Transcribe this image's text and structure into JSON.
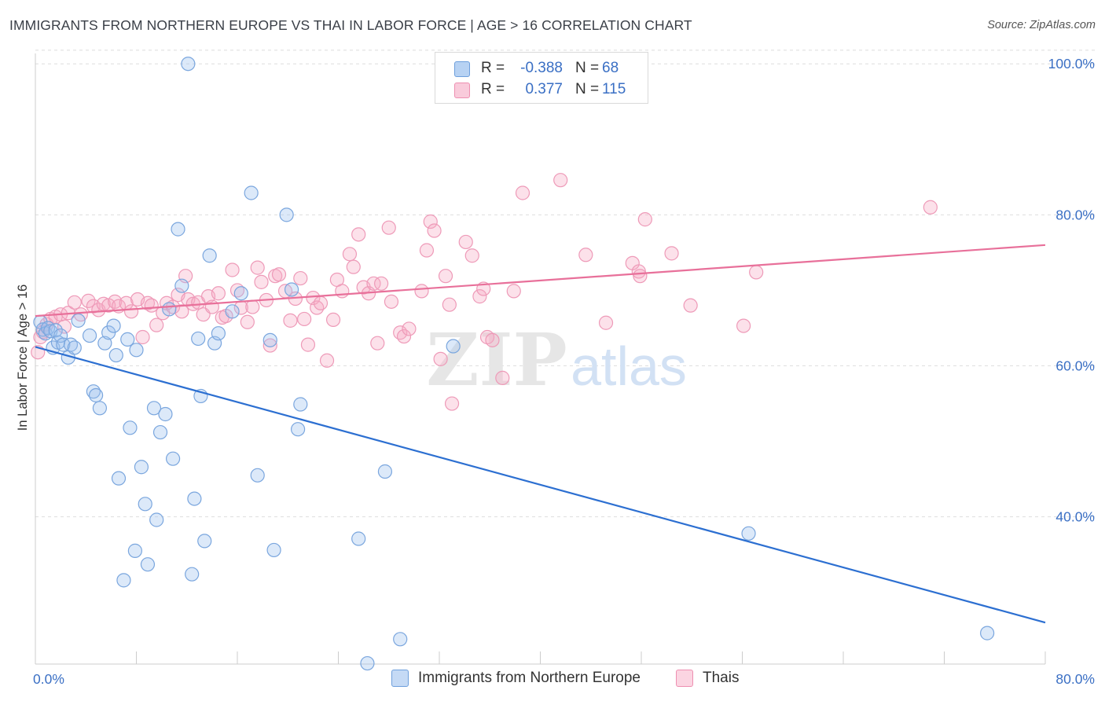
{
  "title": "IMMIGRANTS FROM NORTHERN EUROPE VS THAI IN LABOR FORCE | AGE > 16 CORRELATION CHART",
  "source": "Source: ZipAtlas.com",
  "watermark": {
    "zip": "ZIP",
    "atlas": "atlas"
  },
  "legend_top": {
    "rows": [
      {
        "r_label": "R =",
        "r_value": "-0.388",
        "n_label": "N =",
        "n_value": "68",
        "color": "#a9c8f0",
        "border": "#6e9fdc"
      },
      {
        "r_label": "R =",
        "r_value": "0.377",
        "n_label": "N =",
        "n_value": "115",
        "color": "#f7bfd2",
        "border": "#ee8fb1"
      }
    ]
  },
  "legend_bottom": [
    {
      "label": "Immigrants from Northern Europe",
      "color": "#c5daf5",
      "border": "#6e9fdc"
    },
    {
      "label": "Thais",
      "color": "#fbd5e2",
      "border": "#ee8fb1"
    }
  ],
  "chart_data": {
    "type": "scatter",
    "title": "IMMIGRANTS FROM NORTHERN EUROPE VS THAI IN LABOR FORCE | AGE > 16 CORRELATION CHART",
    "xlabel": "",
    "ylabel": "In Labor Force | Age > 16",
    "xlim": [
      0,
      80
    ],
    "ylim": [
      20.5,
      102
    ],
    "x_tick_labels": [
      "0.0%",
      "80.0%"
    ],
    "y_ticks": [
      40,
      60,
      80,
      100
    ],
    "y_tick_labels": [
      "40.0%",
      "60.0%",
      "80.0%",
      "100.0%"
    ],
    "grid": true,
    "legend_position": "top-center",
    "colors": {
      "blue_fill": "rgba(156,192,238,0.35)",
      "blue_stroke": "#7aa6de",
      "blue_line": "#2c6fd1",
      "pink_fill": "rgba(245,170,196,0.35)",
      "pink_stroke": "#ee9ab8",
      "pink_line": "#e8709a",
      "axis_label": "#3a6fc4",
      "grid": "#dedede"
    },
    "series": [
      {
        "name": "Immigrants from Northern Europe",
        "color": "#7aa6de",
        "trend": {
          "x": [
            0,
            80
          ],
          "y": [
            62.5,
            26.0
          ]
        },
        "points": [
          [
            0.4,
            65.8
          ],
          [
            0.6,
            64.8
          ],
          [
            0.8,
            64.3
          ],
          [
            1.0,
            65.0
          ],
          [
            1.2,
            64.6
          ],
          [
            1.4,
            62.4
          ],
          [
            1.6,
            64.7
          ],
          [
            1.8,
            63.1
          ],
          [
            2.0,
            64.0
          ],
          [
            2.2,
            62.8
          ],
          [
            2.6,
            61.1
          ],
          [
            2.8,
            62.8
          ],
          [
            3.1,
            62.4
          ],
          [
            3.4,
            66.0
          ],
          [
            4.3,
            64.0
          ],
          [
            4.6,
            56.6
          ],
          [
            4.8,
            56.1
          ],
          [
            5.1,
            54.4
          ],
          [
            5.5,
            63.0
          ],
          [
            5.8,
            64.4
          ],
          [
            6.2,
            65.3
          ],
          [
            6.4,
            61.4
          ],
          [
            6.6,
            45.1
          ],
          [
            7.0,
            31.6
          ],
          [
            7.3,
            63.5
          ],
          [
            7.5,
            51.8
          ],
          [
            7.9,
            35.5
          ],
          [
            8.0,
            62.1
          ],
          [
            8.4,
            46.6
          ],
          [
            8.7,
            41.7
          ],
          [
            8.9,
            33.7
          ],
          [
            9.4,
            54.4
          ],
          [
            9.6,
            39.6
          ],
          [
            9.9,
            51.2
          ],
          [
            10.3,
            53.6
          ],
          [
            10.6,
            67.5
          ],
          [
            10.9,
            47.7
          ],
          [
            11.3,
            78.1
          ],
          [
            11.6,
            70.6
          ],
          [
            12.1,
            100.0
          ],
          [
            12.4,
            32.4
          ],
          [
            12.6,
            42.4
          ],
          [
            12.9,
            63.6
          ],
          [
            13.1,
            56.0
          ],
          [
            13.4,
            36.8
          ],
          [
            13.8,
            74.6
          ],
          [
            14.2,
            63.0
          ],
          [
            14.5,
            64.3
          ],
          [
            15.6,
            67.2
          ],
          [
            16.3,
            69.6
          ],
          [
            17.1,
            82.9
          ],
          [
            17.6,
            45.5
          ],
          [
            18.6,
            63.4
          ],
          [
            18.9,
            35.6
          ],
          [
            19.9,
            80.0
          ],
          [
            20.3,
            70.1
          ],
          [
            20.8,
            51.6
          ],
          [
            21.0,
            54.9
          ],
          [
            25.6,
            37.1
          ],
          [
            26.3,
            20.6
          ],
          [
            27.7,
            46.0
          ],
          [
            28.9,
            23.8
          ],
          [
            33.1,
            62.6
          ],
          [
            56.5,
            37.8
          ],
          [
            75.4,
            24.6
          ]
        ]
      },
      {
        "name": "Thais",
        "color": "#ee9ab8",
        "trend": {
          "x": [
            0,
            80
          ],
          "y": [
            66.6,
            76.0
          ]
        },
        "points": [
          [
            0.2,
            61.8
          ],
          [
            0.4,
            63.8
          ],
          [
            0.6,
            64.5
          ],
          [
            0.9,
            65.5
          ],
          [
            1.2,
            66.2
          ],
          [
            1.6,
            66.5
          ],
          [
            2.0,
            66.8
          ],
          [
            2.3,
            65.2
          ],
          [
            2.6,
            67.0
          ],
          [
            3.1,
            68.4
          ],
          [
            3.6,
            66.8
          ],
          [
            4.2,
            68.6
          ],
          [
            4.6,
            67.9
          ],
          [
            5.0,
            67.4
          ],
          [
            5.4,
            68.2
          ],
          [
            5.8,
            68.0
          ],
          [
            6.3,
            68.5
          ],
          [
            6.6,
            67.9
          ],
          [
            7.2,
            68.3
          ],
          [
            7.6,
            67.2
          ],
          [
            8.1,
            68.8
          ],
          [
            8.5,
            63.8
          ],
          [
            8.9,
            68.3
          ],
          [
            9.2,
            68.0
          ],
          [
            9.6,
            65.4
          ],
          [
            10.1,
            67.0
          ],
          [
            10.4,
            68.3
          ],
          [
            10.9,
            67.8
          ],
          [
            11.3,
            69.4
          ],
          [
            11.6,
            67.2
          ],
          [
            11.9,
            71.9
          ],
          [
            12.1,
            68.8
          ],
          [
            12.5,
            68.2
          ],
          [
            12.9,
            68.4
          ],
          [
            13.3,
            66.8
          ],
          [
            13.7,
            69.2
          ],
          [
            14.0,
            67.8
          ],
          [
            14.5,
            69.6
          ],
          [
            14.8,
            66.4
          ],
          [
            15.1,
            66.6
          ],
          [
            15.6,
            72.7
          ],
          [
            16.0,
            70.0
          ],
          [
            16.3,
            67.7
          ],
          [
            16.8,
            65.8
          ],
          [
            17.2,
            67.8
          ],
          [
            17.6,
            73.0
          ],
          [
            17.9,
            71.1
          ],
          [
            18.3,
            68.7
          ],
          [
            18.6,
            62.7
          ],
          [
            19.0,
            71.9
          ],
          [
            19.3,
            72.1
          ],
          [
            19.8,
            69.9
          ],
          [
            20.2,
            66.0
          ],
          [
            20.6,
            68.9
          ],
          [
            21.0,
            71.6
          ],
          [
            21.3,
            66.2
          ],
          [
            21.6,
            62.8
          ],
          [
            22.0,
            69.0
          ],
          [
            22.3,
            67.7
          ],
          [
            22.6,
            68.3
          ],
          [
            23.1,
            60.7
          ],
          [
            23.6,
            66.1
          ],
          [
            23.9,
            71.4
          ],
          [
            24.3,
            69.9
          ],
          [
            24.9,
            74.8
          ],
          [
            25.2,
            73.1
          ],
          [
            25.6,
            77.4
          ],
          [
            26.0,
            70.4
          ],
          [
            26.4,
            69.6
          ],
          [
            26.8,
            70.9
          ],
          [
            27.1,
            63.0
          ],
          [
            27.4,
            70.9
          ],
          [
            28.0,
            78.3
          ],
          [
            28.2,
            68.5
          ],
          [
            28.9,
            64.4
          ],
          [
            29.2,
            63.9
          ],
          [
            29.6,
            64.9
          ],
          [
            30.6,
            69.9
          ],
          [
            31.0,
            75.3
          ],
          [
            31.3,
            79.1
          ],
          [
            31.6,
            77.9
          ],
          [
            32.1,
            60.9
          ],
          [
            32.5,
            71.9
          ],
          [
            32.8,
            68.1
          ],
          [
            33.0,
            55.0
          ],
          [
            34.1,
            76.4
          ],
          [
            34.6,
            74.6
          ],
          [
            35.2,
            69.2
          ],
          [
            35.5,
            70.2
          ],
          [
            35.8,
            63.8
          ],
          [
            36.2,
            63.4
          ],
          [
            37.0,
            58.4
          ],
          [
            37.9,
            69.9
          ],
          [
            38.6,
            82.9
          ],
          [
            41.6,
            84.6
          ],
          [
            43.6,
            74.7
          ],
          [
            45.2,
            65.7
          ],
          [
            47.3,
            73.6
          ],
          [
            47.8,
            72.5
          ],
          [
            47.9,
            71.9
          ],
          [
            48.3,
            79.4
          ],
          [
            50.4,
            74.9
          ],
          [
            51.9,
            68.0
          ],
          [
            56.1,
            65.3
          ],
          [
            57.1,
            72.4
          ],
          [
            70.9,
            81.0
          ]
        ]
      }
    ]
  }
}
